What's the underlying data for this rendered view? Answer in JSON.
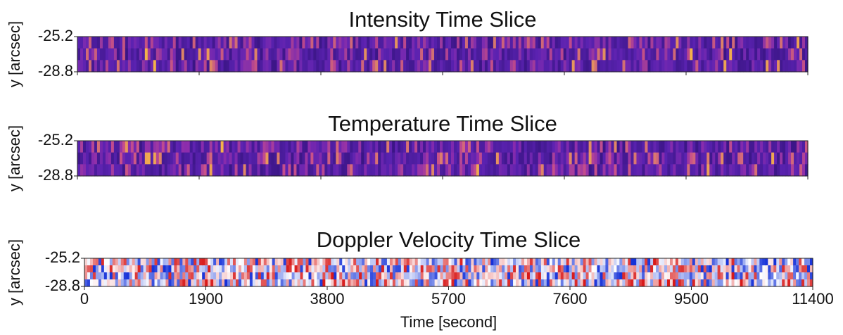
{
  "chart_data": [
    {
      "type": "heatmap",
      "title": "Intensity Time Slice",
      "ylabel": "y [arcsec]",
      "xlim": [
        0,
        11400
      ],
      "ylim": [
        -28.8,
        -25.2
      ],
      "yticks": [
        -25.2,
        -28.8
      ],
      "colors": [
        "#3a1585",
        "#5a22b0",
        "#7a2ab0",
        "#c04a8a",
        "#f4b24a"
      ]
    },
    {
      "type": "heatmap",
      "title": "Temperature Time Slice",
      "ylabel": "y [arcsec]",
      "xlim": [
        0,
        11400
      ],
      "ylim": [
        -28.8,
        -25.2
      ],
      "yticks": [
        -25.2,
        -28.8
      ],
      "colors": [
        "#3a1585",
        "#5a22b0",
        "#8a2cad",
        "#c8508a",
        "#f4b24a"
      ]
    },
    {
      "type": "heatmap",
      "title": "Doppler Velocity Time Slice",
      "ylabel": "y [arcsec]",
      "xlabel": "Time [second]",
      "xlim": [
        0,
        11400
      ],
      "ylim": [
        -28.8,
        -25.2
      ],
      "yticks": [
        -25.2,
        -28.8
      ],
      "xticks": [
        0,
        1900,
        3800,
        5700,
        7600,
        9500,
        11400
      ],
      "colors": [
        "#1530d8",
        "#8fa0ee",
        "#ffffff",
        "#ee9a9a",
        "#d81818"
      ]
    }
  ]
}
